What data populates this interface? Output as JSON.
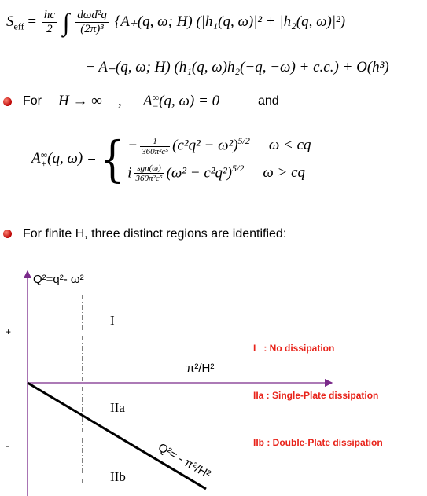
{
  "equation": {
    "S": "S",
    "eff": "eff",
    "eq": "=",
    "frac1_num": "hc",
    "frac1_den": "2",
    "int": "∫",
    "frac2_num": "dωd²q",
    "frac2_den": "(2π)³",
    "rest": "{A₊(q, ω; H) (|h₁(q, ω)|² + |h₂(q, ω)|²)",
    "line2": "− A₋(q, ω; H) (h₁(q, ω)h₂(−q, −ω) + c.c.) + O(h³)"
  },
  "bullet1": {
    "for": "For",
    "math1": "H → ∞",
    "comma": ",",
    "a_base": "A",
    "a_sub": "−",
    "a_sup": "∞",
    "a_rest": "(q, ω) = 0",
    "and": "and"
  },
  "piecewise": {
    "lhs_base": "A",
    "lhs_sub": "+",
    "lhs_sup": "∞",
    "lhs_rest": "(q, ω) =",
    "cases": [
      {
        "pre": "−",
        "num": "1",
        "den": "360π²c⁵",
        "body": "(c²q² − ω²)",
        "exp": "5/2",
        "cond": "ω < cq"
      },
      {
        "pre": "i",
        "num": "sgn(ω)",
        "den": "360π²c⁵",
        "body": "(ω² − c²q²)",
        "exp": "5/2",
        "cond": "ω > cq"
      }
    ]
  },
  "bullet2": "For finite H, three distinct regions are identified:",
  "diagram": {
    "y_label": "Q²=q²- ω²",
    "plus": "+",
    "minus": "-",
    "x_label": "π²/H²",
    "line_label": "Q²= - π²/H²",
    "regions": [
      "I",
      "IIa",
      "IIb"
    ]
  },
  "legend": [
    "I   : No dissipation",
    "IIa : Single-Plate dissipation",
    "IIb : Double-Plate dissipation"
  ]
}
